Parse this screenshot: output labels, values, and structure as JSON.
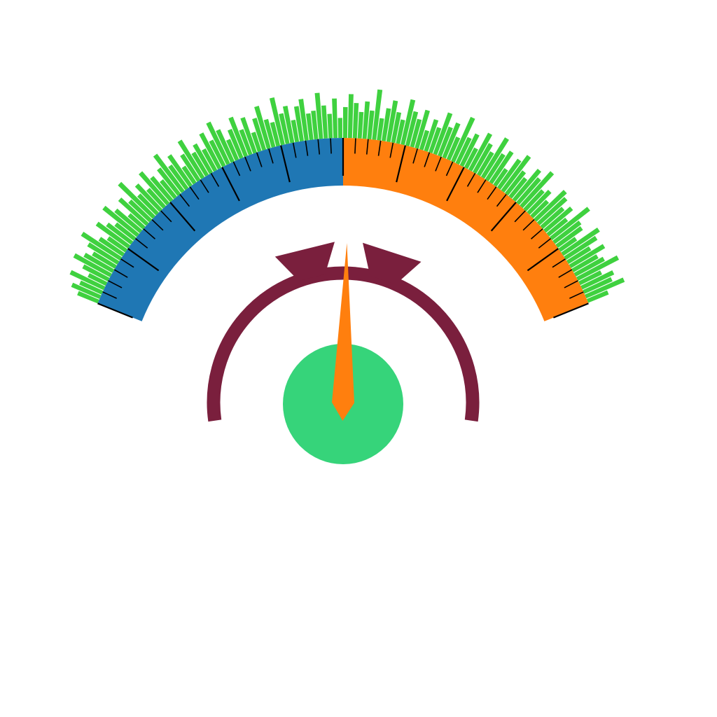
{
  "gauge": {
    "colors": {
      "left_band": "#1f77b4",
      "right_band": "#ff7f0e",
      "bars": "#3fd13f",
      "ring": "#7a1f3d",
      "needle": "#ff7f0e",
      "hub": "#36d47a",
      "ticks": "#000000"
    },
    "needle_fraction": 0.51,
    "bars": [
      0.35,
      0.55,
      0.4,
      0.7,
      0.3,
      0.5,
      0.8,
      0.6,
      0.45,
      0.65,
      0.9,
      0.5,
      0.35,
      0.75,
      0.55,
      0.4,
      0.85,
      0.6,
      0.3,
      0.7,
      0.5,
      0.95,
      0.45,
      0.65,
      0.4,
      0.8,
      0.55,
      0.35,
      0.6,
      0.9,
      0.5,
      0.7,
      0.3,
      0.55,
      0.85,
      0.45,
      0.6,
      0.4,
      0.75,
      0.5,
      0.9,
      0.65,
      0.35,
      0.55,
      0.8,
      0.45,
      0.7,
      0.3,
      0.6,
      0.85,
      0.5,
      0.4,
      0.95,
      0.55,
      0.7,
      0.35,
      0.65,
      0.8,
      0.45,
      0.5,
      0.9,
      0.6,
      0.4,
      0.75,
      0.3,
      0.55,
      0.85,
      0.65,
      0.45,
      0.7,
      0.5,
      1.0,
      0.35,
      0.6,
      0.8,
      0.55,
      0.4,
      0.9,
      0.65,
      0.5,
      0.75,
      0.3,
      0.6,
      0.45,
      0.85,
      0.55,
      0.7,
      0.4,
      0.95,
      0.5,
      0.65,
      0.35,
      0.8,
      0.6,
      0.45,
      0.9,
      0.55,
      0.7,
      0.3,
      0.65,
      0.85,
      0.5,
      0.4,
      0.75,
      0.6,
      0.9,
      0.45,
      0.55,
      0.35,
      0.8,
      0.7,
      0.5,
      0.65,
      0.4,
      0.95,
      0.6,
      0.55,
      0.3,
      0.85,
      0.7,
      0.45,
      0.75,
      0.5,
      0.6,
      0.9,
      0.4,
      0.65,
      0.55,
      0.8,
      0.35
    ]
  }
}
